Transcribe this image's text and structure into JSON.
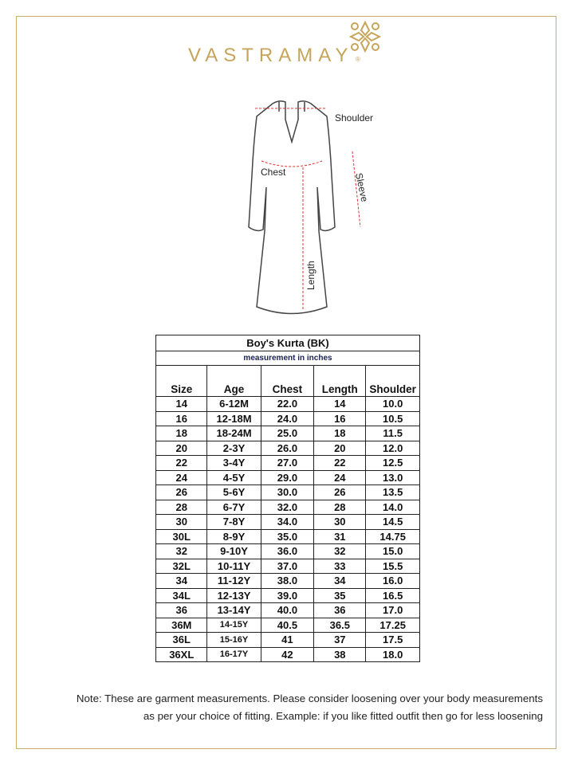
{
  "brand": {
    "name": "VASTRAMAY",
    "registered": "®",
    "color": "#c6a55a"
  },
  "diagram": {
    "labels": {
      "shoulder": "Shoulder",
      "chest": "Chest",
      "sleeve": "Sleeve",
      "length": "Length"
    }
  },
  "table": {
    "title": "Boy's Kurta (BK)",
    "subtitle": "measurement in inches",
    "headers": [
      "Size",
      "Age",
      "Chest",
      "Length",
      "Shoulder"
    ],
    "rows": [
      [
        "14",
        "6-12M",
        "22.0",
        "14",
        "10.0"
      ],
      [
        "16",
        "12-18M",
        "24.0",
        "16",
        "10.5"
      ],
      [
        "18",
        "18-24M",
        "25.0",
        "18",
        "11.5"
      ],
      [
        "20",
        "2-3Y",
        "26.0",
        "20",
        "12.0"
      ],
      [
        "22",
        "3-4Y",
        "27.0",
        "22",
        "12.5"
      ],
      [
        "24",
        "4-5Y",
        "29.0",
        "24",
        "13.0"
      ],
      [
        "26",
        "5-6Y",
        "30.0",
        "26",
        "13.5"
      ],
      [
        "28",
        "6-7Y",
        "32.0",
        "28",
        "14.0"
      ],
      [
        "30",
        "7-8Y",
        "34.0",
        "30",
        "14.5"
      ],
      [
        "30L",
        "8-9Y",
        "35.0",
        "31",
        "14.75"
      ],
      [
        "32",
        "9-10Y",
        "36.0",
        "32",
        "15.0"
      ],
      [
        "32L",
        "10-11Y",
        "37.0",
        "33",
        "15.5"
      ],
      [
        "34",
        "11-12Y",
        "38.0",
        "34",
        "16.0"
      ],
      [
        "34L",
        "12-13Y",
        "39.0",
        "35",
        "16.5"
      ],
      [
        "36",
        "13-14Y",
        "40.0",
        "36",
        "17.0"
      ],
      [
        "36M",
        "14-15Y",
        "40.5",
        "36.5",
        "17.25"
      ],
      [
        "36L",
        "15-16Y",
        "41",
        "37",
        "17.5"
      ],
      [
        "36XL",
        "16-17Y",
        "42",
        "38",
        "18.0"
      ]
    ]
  },
  "note": {
    "line1": "Note: These are garment measurements. Please consider loosening over your body measurements",
    "line2": "as per your choice of fitting. Example: if you like fitted outfit then go for less loosening"
  }
}
